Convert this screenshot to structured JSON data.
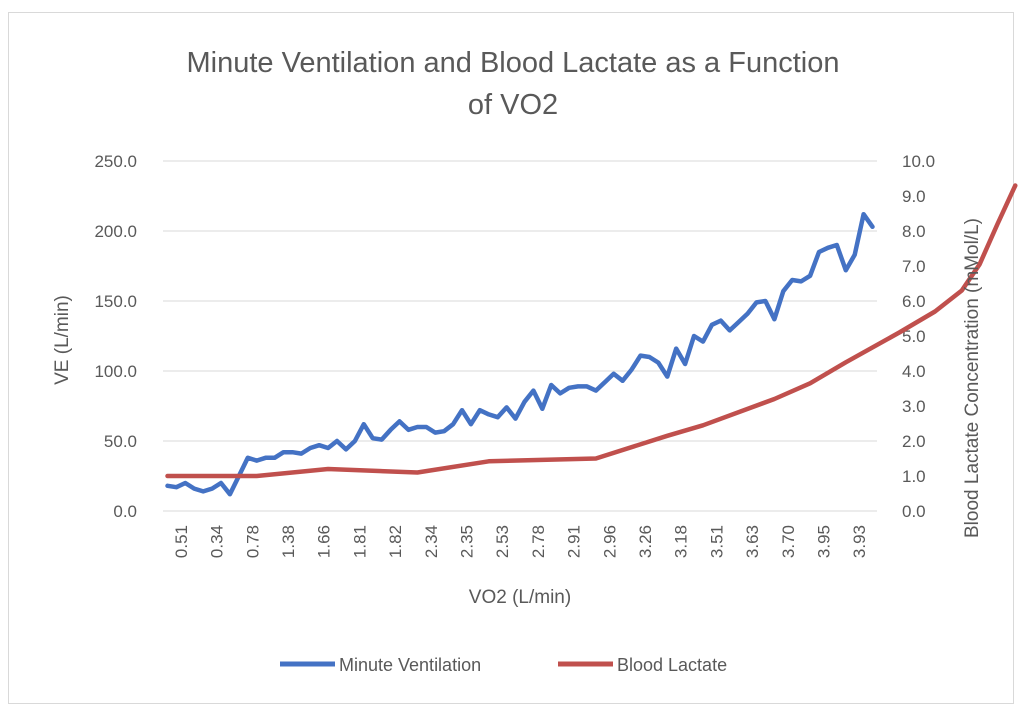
{
  "chart_data": {
    "type": "line",
    "title": "Minute Ventilation and Blood Lactate as a Function of VO2",
    "title_lines": [
      "Minute Ventilation and Blood Lactate as a Function",
      "of VO2"
    ],
    "xlabel": "VO2 (L/min)",
    "ylabel": "VE (L/min)",
    "y2label": "Blood Lactate Concentration (mMol/L)",
    "ylim": [
      0,
      250
    ],
    "y2lim": [
      0,
      10
    ],
    "yticks": [
      "0.0",
      "50.0",
      "100.0",
      "150.0",
      "200.0",
      "250.0"
    ],
    "y2ticks": [
      "0.0",
      "1.0",
      "2.0",
      "3.0",
      "4.0",
      "5.0",
      "6.0",
      "7.0",
      "8.0",
      "9.0",
      "10.0"
    ],
    "x_tick_labels": [
      "0.51",
      "0.34",
      "0.78",
      "1.38",
      "1.66",
      "1.81",
      "1.82",
      "2.34",
      "2.35",
      "2.53",
      "2.78",
      "2.91",
      "2.96",
      "3.26",
      "3.18",
      "3.51",
      "3.63",
      "3.70",
      "3.95",
      "3.93"
    ],
    "grid": true,
    "legend_position": "bottom",
    "series": [
      {
        "name": "Minute Ventilation",
        "axis": "left",
        "color": "#4472C4",
        "values": [
          18,
          17,
          20,
          16,
          14,
          16,
          20,
          12,
          25,
          38,
          36,
          38,
          38,
          42,
          42,
          41,
          45,
          47,
          45,
          50,
          44,
          50,
          62,
          52,
          51,
          58,
          64,
          58,
          60,
          60,
          56,
          57,
          62,
          72,
          62,
          72,
          69,
          67,
          74,
          66,
          78,
          86,
          73,
          90,
          84,
          88,
          89,
          89,
          86,
          92,
          98,
          93,
          101,
          111,
          110,
          106,
          96,
          116,
          105,
          125,
          121,
          133,
          136,
          129,
          135,
          141,
          149,
          150,
          137,
          157,
          165,
          164,
          168,
          185,
          188,
          190,
          172,
          183,
          212,
          203
        ]
      },
      {
        "name": "Blood Lactate",
        "axis": "right",
        "color": "#C0504D",
        "points": [
          [
            0,
            1.0
          ],
          [
            10,
            1.0
          ],
          [
            18,
            1.2
          ],
          [
            28,
            1.1
          ],
          [
            36,
            1.42
          ],
          [
            48,
            1.5
          ],
          [
            56,
            2.15
          ],
          [
            60,
            2.45
          ],
          [
            68,
            3.2
          ],
          [
            72,
            3.65
          ],
          [
            76,
            4.25
          ],
          [
            82,
            5.1
          ],
          [
            86,
            5.7
          ],
          [
            89,
            6.3
          ],
          [
            91,
            7.05
          ],
          [
            93,
            8.2
          ],
          [
            95,
            9.3
          ]
        ]
      }
    ]
  }
}
